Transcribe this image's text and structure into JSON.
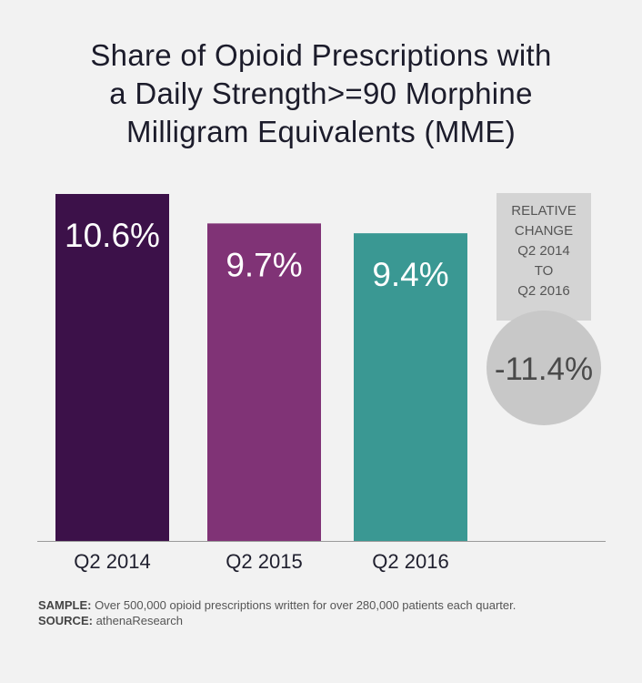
{
  "chart_data": {
    "type": "bar",
    "title": [
      "Share of Opioid Prescriptions with",
      "a Daily Strength>=90 Morphine",
      "Milligram Equivalents (MME)"
    ],
    "categories": [
      "Q2 2014",
      "Q2 2015",
      "Q2 2016"
    ],
    "values": [
      10.6,
      9.7,
      9.4
    ],
    "value_labels": [
      "10.6%",
      "9.7%",
      "9.4%"
    ],
    "unit": "%",
    "colors": [
      "#3c1149",
      "#803376",
      "#3a9893"
    ],
    "ylim": [
      0,
      10.6
    ],
    "grid": false,
    "legend": "none",
    "annotation": {
      "label_lines": [
        "RELATIVE",
        "CHANGE",
        "Q2 2014",
        "TO",
        "Q2 2016"
      ],
      "value": "-11.4%",
      "panel_color": "#d4d4d4",
      "circle_color": "#c8c8c8",
      "text_color": "#4a4a4a",
      "label_color": "#555555"
    }
  },
  "footer": {
    "sample_label": "SAMPLE:",
    "sample_text": " Over 500,000 opioid prescriptions written for over 280,000 patients each quarter.",
    "source_label": "SOURCE:",
    "source_text": " athenaResearch"
  }
}
